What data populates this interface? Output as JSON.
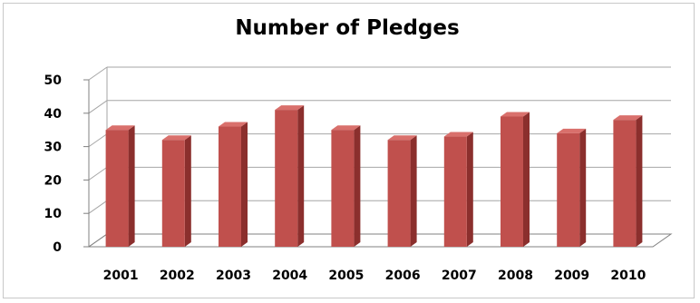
{
  "chart_data": {
    "type": "bar",
    "title": "Number of Pledges",
    "xlabel": "",
    "ylabel": "",
    "categories": [
      "2001",
      "2002",
      "2003",
      "2004",
      "2005",
      "2006",
      "2007",
      "2008",
      "2009",
      "2010"
    ],
    "values": [
      35,
      32,
      36,
      41,
      35,
      32,
      33,
      39,
      34,
      38
    ],
    "ylim": [
      0,
      50
    ],
    "yticks": [
      0,
      10,
      20,
      30,
      40,
      50
    ],
    "grid": true,
    "legend": "none",
    "style": "3d-column",
    "colors": {
      "bar_front": "#c0504d",
      "bar_side": "#8b2f2d",
      "bar_top": "#d9706c",
      "grid": "#a6a6a6"
    }
  }
}
